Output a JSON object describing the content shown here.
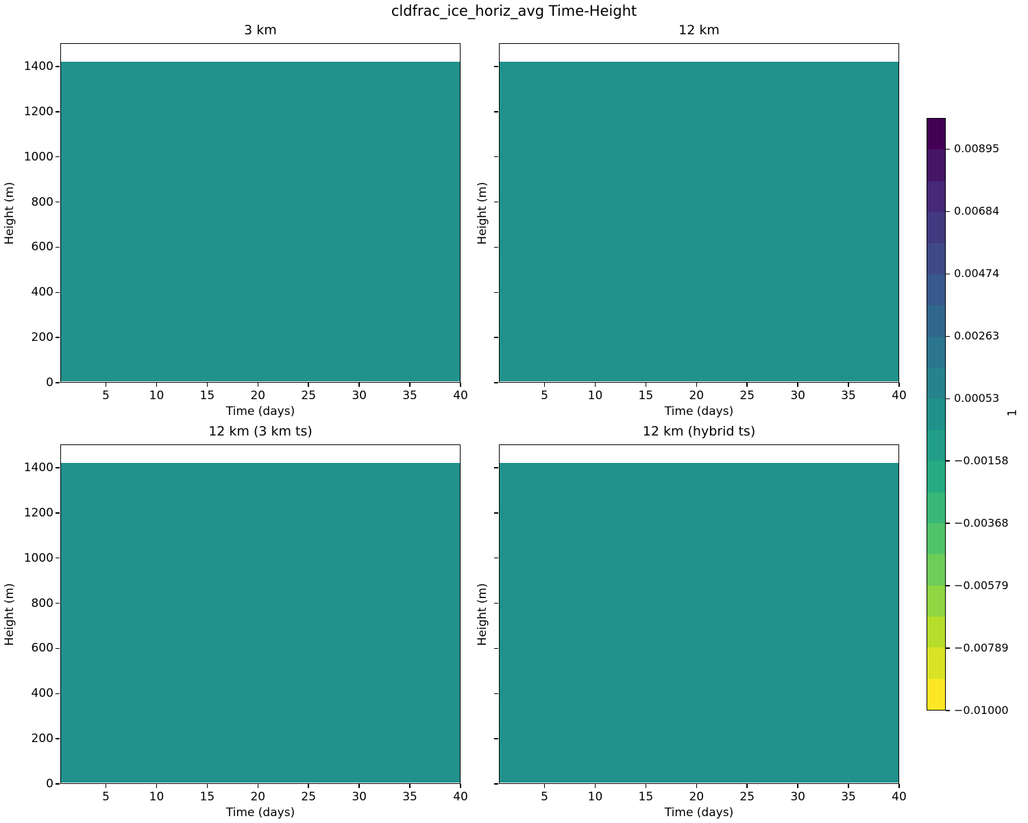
{
  "chart_data": {
    "type": "heatmap",
    "title": "cldfrac_ice_horiz_avg Time-Height",
    "layout": "2x2 subplots with shared discrete colorbar on right",
    "panels": [
      {
        "title": "3 km",
        "show_y_tick_labels": true
      },
      {
        "title": "12 km",
        "show_y_tick_labels": false
      },
      {
        "title": "12 km (3 km ts)",
        "show_y_tick_labels": true
      },
      {
        "title": "12 km (hybrid ts)",
        "show_y_tick_labels": false
      }
    ],
    "axes": {
      "x_label": "Time (days)",
      "y_label": "Height (m)",
      "x_ticks": [
        5,
        10,
        15,
        20,
        25,
        30,
        35,
        40
      ],
      "y_ticks": [
        0,
        200,
        400,
        600,
        800,
        1000,
        1200,
        1400
      ],
      "x_range": [
        0.5,
        40
      ],
      "y_range": [
        0,
        1503
      ],
      "grid": false
    },
    "field": {
      "description": "uniform constant field in every panel, white gaps at very top and bottom of plot",
      "value_approx": 0,
      "color": "#21918c",
      "top_m": 1425,
      "bottom_m": 8
    },
    "colorbar": {
      "label": "1",
      "orientation": "vertical",
      "range": [
        -0.01,
        0.01006
      ],
      "tick_labels": [
        "0.00895",
        "0.00684",
        "0.00474",
        "0.00263",
        "0.00053",
        "−0.00158",
        "−0.00368",
        "−0.00579",
        "−0.00789",
        "−0.01000"
      ],
      "colors": [
        "#440154",
        "#461566",
        "#472777",
        "#433981",
        "#3e4a88",
        "#37598c",
        "#31678d",
        "#2b758e",
        "#26838d",
        "#21918c",
        "#229e88",
        "#26aa82",
        "#39b777",
        "#50c369",
        "#6ecd58",
        "#90d643",
        "#b6dd2b",
        "#dae226",
        "#fde725"
      ]
    }
  }
}
